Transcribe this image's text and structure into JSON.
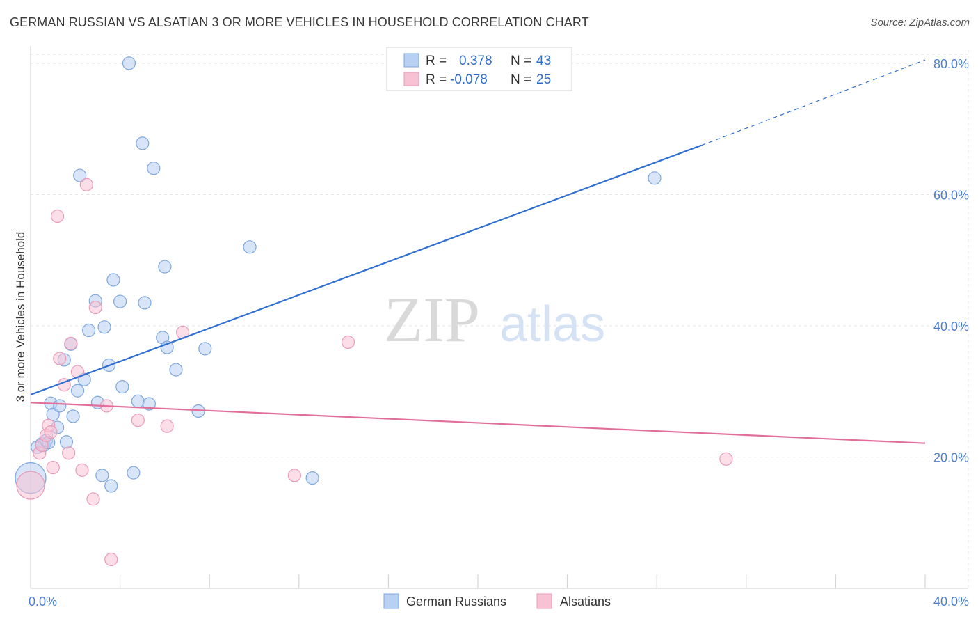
{
  "title": "GERMAN RUSSIAN VS ALSATIAN 3 OR MORE VEHICLES IN HOUSEHOLD CORRELATION CHART",
  "source": "Source: ZipAtlas.com",
  "watermark": {
    "zip": "ZIP",
    "atlas": "atlas"
  },
  "colors": {
    "blue_fill": "#b8d0f2",
    "blue_stroke": "#7da7df",
    "blue_line": "#2f6fd1",
    "pink_fill": "#f7c3d4",
    "pink_stroke": "#e99ab6",
    "pink_line": "#e0709a",
    "grid": "#e3e3e3",
    "tick_text": "#4a7fd0"
  },
  "legend": {
    "rows": [
      {
        "r_label": "R =",
        "r_value": "0.378",
        "n_label": "N =",
        "n_value": "43",
        "series": "blue"
      },
      {
        "r_label": "R =",
        "r_value": "-0.078",
        "n_label": "N =",
        "n_value": "25",
        "series": "pink"
      }
    ]
  },
  "bottom_legend": [
    "German Russians",
    "Alsatians"
  ],
  "chart_data": {
    "type": "scatter",
    "title": "GERMAN RUSSIAN VS ALSATIAN 3 OR MORE VEHICLES IN HOUSEHOLD CORRELATION CHART",
    "xlabel": "",
    "ylabel": "3 or more Vehicles in Household",
    "xlim": [
      0,
      40
    ],
    "ylim": [
      0,
      82
    ],
    "x_tick_labels": [
      "0.0%",
      "40.0%"
    ],
    "y_ticks": [
      20,
      40,
      60,
      80
    ],
    "y_tick_labels": [
      "20.0%",
      "40.0%",
      "60.0%",
      "80.0%"
    ],
    "series": [
      {
        "name": "German Russians",
        "color": "blue",
        "points": [
          [
            0.0,
            16.8,
            22
          ],
          [
            0.3,
            21.5,
            9
          ],
          [
            0.5,
            22.0,
            9
          ],
          [
            0.6,
            21.8,
            9
          ],
          [
            0.7,
            22.5,
            9
          ],
          [
            0.8,
            22.2,
            9
          ],
          [
            0.9,
            28.2,
            9
          ],
          [
            1.0,
            26.5,
            9
          ],
          [
            1.2,
            24.5,
            9
          ],
          [
            1.3,
            27.8,
            9
          ],
          [
            1.5,
            34.8,
            9
          ],
          [
            1.6,
            22.3,
            9
          ],
          [
            1.8,
            37.2,
            9
          ],
          [
            1.9,
            26.2,
            9
          ],
          [
            2.1,
            30.1,
            9
          ],
          [
            2.4,
            31.8,
            9
          ],
          [
            2.2,
            62.9,
            9
          ],
          [
            2.6,
            39.3,
            9
          ],
          [
            2.9,
            43.8,
            9
          ],
          [
            3.0,
            28.3,
            9
          ],
          [
            3.2,
            17.2,
            9
          ],
          [
            3.3,
            39.8,
            9
          ],
          [
            3.5,
            34.0,
            9
          ],
          [
            3.6,
            15.6,
            9
          ],
          [
            3.7,
            47.0,
            9
          ],
          [
            4.0,
            43.7,
            9
          ],
          [
            4.1,
            30.7,
            9
          ],
          [
            4.4,
            80.0,
            9
          ],
          [
            4.6,
            17.6,
            9
          ],
          [
            4.8,
            28.5,
            9
          ],
          [
            5.0,
            67.8,
            9
          ],
          [
            5.1,
            43.5,
            9
          ],
          [
            5.3,
            28.1,
            9
          ],
          [
            5.5,
            64.0,
            9
          ],
          [
            5.9,
            38.2,
            9
          ],
          [
            6.0,
            49.0,
            9
          ],
          [
            6.1,
            36.7,
            9
          ],
          [
            6.5,
            33.3,
            9
          ],
          [
            7.5,
            27.0,
            9
          ],
          [
            7.8,
            36.5,
            9
          ],
          [
            9.8,
            52.0,
            9
          ],
          [
            12.6,
            16.8,
            9
          ],
          [
            27.9,
            62.5,
            9
          ]
        ]
      },
      {
        "name": "Alsatians",
        "color": "pink",
        "points": [
          [
            0.0,
            15.7,
            20
          ],
          [
            0.4,
            20.6,
            9
          ],
          [
            0.5,
            21.8,
            9
          ],
          [
            0.7,
            23.3,
            9
          ],
          [
            0.8,
            24.8,
            9
          ],
          [
            0.9,
            23.8,
            9
          ],
          [
            1.0,
            18.4,
            9
          ],
          [
            1.2,
            56.7,
            9
          ],
          [
            1.3,
            35.0,
            9
          ],
          [
            1.5,
            31.0,
            9
          ],
          [
            1.7,
            20.6,
            9
          ],
          [
            1.8,
            37.3,
            9
          ],
          [
            2.1,
            33.0,
            9
          ],
          [
            2.3,
            18.0,
            9
          ],
          [
            2.5,
            61.5,
            9
          ],
          [
            2.8,
            13.6,
            9
          ],
          [
            2.9,
            42.8,
            9
          ],
          [
            3.4,
            27.8,
            9
          ],
          [
            3.6,
            4.4,
            9
          ],
          [
            4.8,
            25.6,
            9
          ],
          [
            6.1,
            24.7,
            9
          ],
          [
            6.8,
            39.0,
            9
          ],
          [
            11.8,
            17.2,
            9
          ],
          [
            14.2,
            37.5,
            9
          ],
          [
            31.1,
            19.7,
            9
          ]
        ]
      }
    ],
    "trendlines": [
      {
        "series": "German Russians",
        "x1": 0,
        "y1": 29.5,
        "x2": 30,
        "y2": 67.5,
        "dashed_to_x": 40,
        "dashed_to_y": 80.5
      },
      {
        "series": "Alsatians",
        "x1": 0,
        "y1": 28.3,
        "x2": 40,
        "y2": 22.1
      }
    ]
  }
}
